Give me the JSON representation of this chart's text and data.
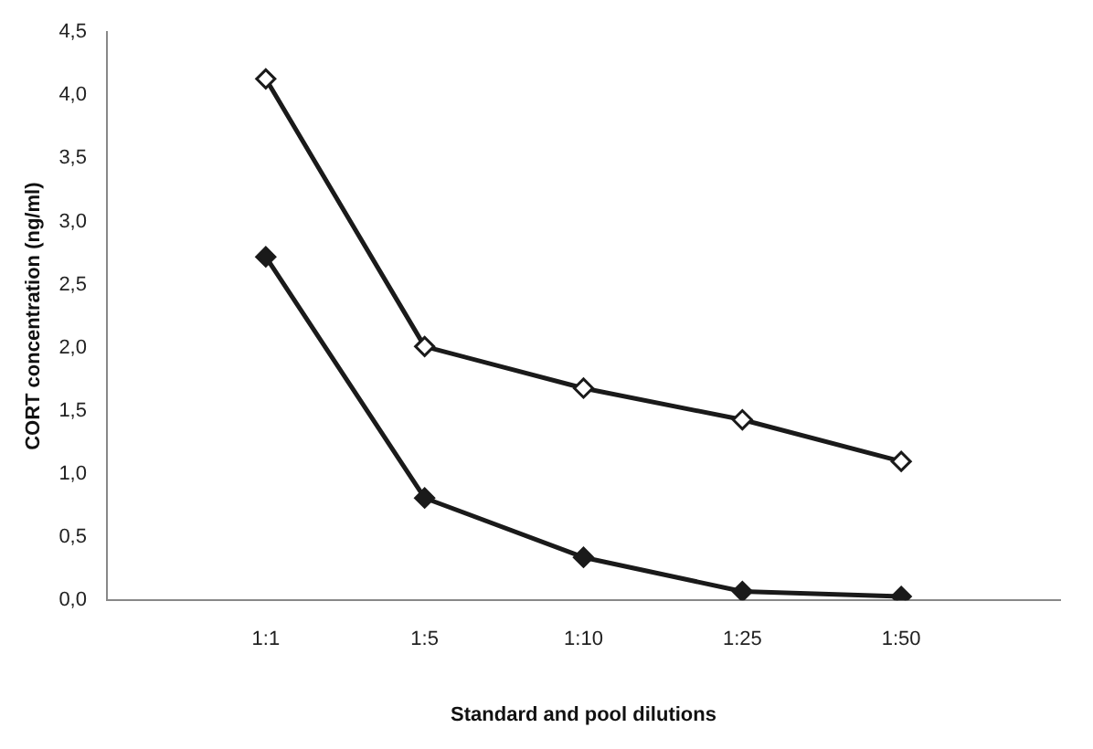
{
  "chart_data": {
    "type": "line",
    "xlabel": "Standard and pool dilutions",
    "ylabel": "CORT concentration (ng/ml)",
    "categories": [
      null,
      "1:1",
      "1:5",
      "1:10",
      "1:25",
      "1:50",
      null
    ],
    "series": [
      {
        "color": "#1a1a1a",
        "values": [
          null,
          4.13,
          2.01,
          1.68,
          1.43,
          1.1,
          null
        ]
      },
      {
        "color": "#1a1a1a",
        "values": [
          null,
          2.72,
          0.81,
          0.34,
          0.07,
          0.03,
          null
        ]
      }
    ],
    "ylim": [
      0,
      4.5
    ],
    "yticks": [
      {
        "value": 0,
        "label": "0,0"
      },
      {
        "value": 0.5,
        "label": "0,5"
      },
      {
        "value": 1,
        "label": "1,0"
      },
      {
        "value": 1.5,
        "label": "1,5"
      },
      {
        "value": 2,
        "label": "2,0"
      },
      {
        "value": 2.5,
        "label": "2,5"
      },
      {
        "value": 3,
        "label": "3,0"
      },
      {
        "value": 3.5,
        "label": "3,5"
      },
      {
        "value": 4,
        "label": "4,0"
      },
      {
        "value": 4.5,
        "label": "4,5"
      }
    ],
    "grid": false,
    "legend": false,
    "marker": "diamond",
    "line_style": "solid"
  }
}
